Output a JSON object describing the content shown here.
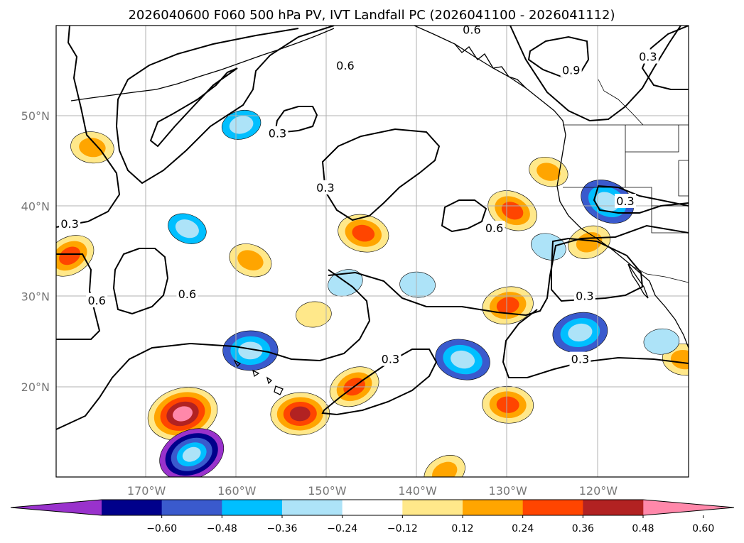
{
  "chart_data": {
    "type": "contour_map",
    "title": "2026040600 F060 500 hPa PV, IVT Landfall PC (2026041100 - 2026041112)",
    "map": {
      "lon_range": [
        180,
        110
      ],
      "lat_range": [
        10,
        60
      ],
      "lat_ticks": [
        {
          "value": 20,
          "label": "20°N"
        },
        {
          "value": 30,
          "label": "30°N"
        },
        {
          "value": 40,
          "label": "40°N"
        },
        {
          "value": 50,
          "label": "50°N"
        }
      ],
      "lon_ticks": [
        {
          "value": 170,
          "label": "170°W"
        },
        {
          "value": 160,
          "label": "160°W"
        },
        {
          "value": 150,
          "label": "150°W"
        },
        {
          "value": 140,
          "label": "140°W"
        },
        {
          "value": 130,
          "label": "130°W"
        },
        {
          "value": 120,
          "label": "120°W"
        }
      ],
      "grid": true
    },
    "colorbar": {
      "levels": [
        -0.6,
        -0.48,
        -0.36,
        -0.24,
        -0.12,
        0.12,
        0.24,
        0.36,
        0.48,
        0.6
      ],
      "tick_labels": [
        "−0.60",
        "−0.48",
        "−0.36",
        "−0.24",
        "−0.12",
        "0.12",
        "0.24",
        "0.36",
        "0.48",
        "0.60"
      ],
      "colors": [
        "#9932CC",
        "#00008B",
        "#3A5ACD",
        "#00BFFF",
        "#ADE3F8",
        "#FFFFFF",
        "#FFE88A",
        "#FFA500",
        "#FF4500",
        "#B22222",
        "#FF88AA"
      ],
      "extend": "both"
    },
    "contour_labels": [
      {
        "text": "0.6",
        "lon": 148,
        "lat": 55.5
      },
      {
        "text": "0.3",
        "lon": 155.5,
        "lat": 48
      },
      {
        "text": "0.3",
        "lon": 150.2,
        "lat": 42
      },
      {
        "text": "0.6",
        "lon": 131.5,
        "lat": 37.5
      },
      {
        "text": "0.3",
        "lon": 178.5,
        "lat": 38
      },
      {
        "text": "0.6",
        "lon": 175.5,
        "lat": 29.5
      },
      {
        "text": "0.6",
        "lon": 165.5,
        "lat": 30.2
      },
      {
        "text": "0.3",
        "lon": 117,
        "lat": 40.5
      },
      {
        "text": "0.3",
        "lon": 121.5,
        "lat": 30
      },
      {
        "text": "0.3",
        "lon": 122,
        "lat": 23
      },
      {
        "text": "0.3",
        "lon": 143,
        "lat": 23
      },
      {
        "text": "0.9",
        "lon": 123,
        "lat": 55
      },
      {
        "text": "0.3",
        "lon": 114.5,
        "lat": 56.5
      },
      {
        "text": "0.6",
        "lon": 134,
        "lat": 59.5
      }
    ],
    "anomalies": [
      {
        "sign": "positive",
        "lon": 178.5,
        "lat": 34.5,
        "peak": 0.4
      },
      {
        "sign": "positive",
        "lon": 176,
        "lat": 46.5,
        "peak": 0.3
      },
      {
        "sign": "positive",
        "lon": 166,
        "lat": 17,
        "peak": 0.65
      },
      {
        "sign": "positive",
        "lon": 158.5,
        "lat": 34,
        "peak": 0.3
      },
      {
        "sign": "positive",
        "lon": 153,
        "lat": 17,
        "peak": 0.5
      },
      {
        "sign": "positive",
        "lon": 147,
        "lat": 20,
        "peak": 0.4
      },
      {
        "sign": "positive",
        "lon": 146,
        "lat": 37,
        "peak": 0.4
      },
      {
        "sign": "positive",
        "lon": 130,
        "lat": 29,
        "peak": 0.4
      },
      {
        "sign": "positive",
        "lon": 129.5,
        "lat": 39.5,
        "peak": 0.4
      },
      {
        "sign": "positive",
        "lon": 130,
        "lat": 18,
        "peak": 0.4
      },
      {
        "sign": "positive",
        "lon": 121,
        "lat": 36,
        "peak": 0.3
      },
      {
        "sign": "positive",
        "lon": 125.5,
        "lat": 43.8,
        "peak": 0.25
      },
      {
        "sign": "positive",
        "lon": 151.5,
        "lat": 28,
        "peak": 0.2
      },
      {
        "sign": "positive",
        "lon": 137,
        "lat": 10.5,
        "peak": 0.3
      },
      {
        "sign": "positive",
        "lon": 110.5,
        "lat": 23,
        "peak": 0.3
      },
      {
        "sign": "negative",
        "lon": 159.5,
        "lat": 49,
        "peak": -0.25
      },
      {
        "sign": "negative",
        "lon": 165.5,
        "lat": 37.5,
        "peak": -0.25
      },
      {
        "sign": "negative",
        "lon": 158.5,
        "lat": 24,
        "peak": -0.45
      },
      {
        "sign": "negative",
        "lon": 165,
        "lat": 12.5,
        "peak": -0.6
      },
      {
        "sign": "negative",
        "lon": 135,
        "lat": 23,
        "peak": -0.45
      },
      {
        "sign": "negative",
        "lon": 122,
        "lat": 26,
        "peak": -0.45
      },
      {
        "sign": "negative",
        "lon": 119,
        "lat": 40.5,
        "peak": -0.45
      },
      {
        "sign": "negative",
        "lon": 140,
        "lat": 31.3,
        "peak": -0.2
      },
      {
        "sign": "negative",
        "lon": 148,
        "lat": 31.5,
        "peak": -0.2
      },
      {
        "sign": "negative",
        "lon": 125.5,
        "lat": 35.5,
        "peak": -0.2
      },
      {
        "sign": "negative",
        "lon": 113,
        "lat": 25,
        "peak": -0.2
      }
    ]
  }
}
